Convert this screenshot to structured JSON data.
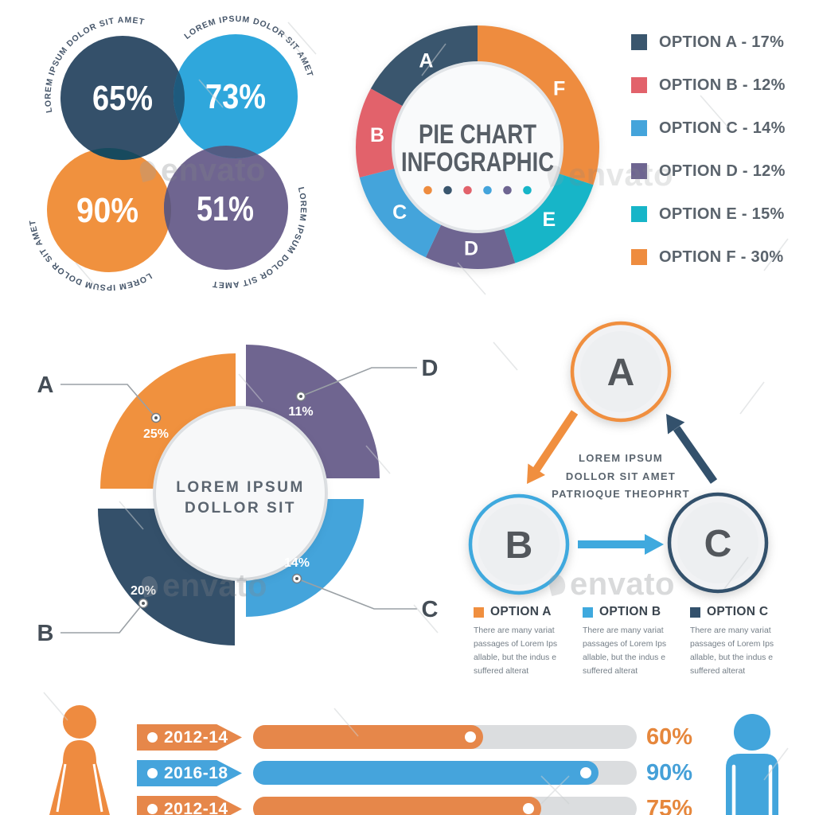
{
  "brand_watermark": "envato",
  "venn": {
    "items": [
      {
        "value": "65%",
        "curved_label": "LOREM IPSUM DOLOR SIT AMET",
        "color": "#34506A"
      },
      {
        "value": "73%",
        "curved_label": "LOREM IPSUM DOLOR SIT AMET",
        "color": "#2FA7DC"
      },
      {
        "value": "90%",
        "curved_label": "LOREM IPSUM DOLOR SIT AMET",
        "color": "#F0913E"
      },
      {
        "value": "51%",
        "curved_label": "LOREM IPSUM DOLOR SIT AMET",
        "color": "#6F6590"
      }
    ],
    "overlap_colors": {
      "navy_blue": "#1E5A7D",
      "navy_orange": "#174A5E",
      "blue_purple": "#525C83",
      "orange_purple": "#62597B"
    }
  },
  "pie": {
    "title_line1": "PIE CHART",
    "title_line2": "INFOGRAPHIC",
    "segments": [
      {
        "label": "A",
        "pct": 17,
        "color": "#3A566E"
      },
      {
        "label": "B",
        "pct": 12,
        "color": "#E2626B"
      },
      {
        "label": "C",
        "pct": 14,
        "color": "#44A4DB"
      },
      {
        "label": "D",
        "pct": 12,
        "color": "#6E6591"
      },
      {
        "label": "E",
        "pct": 15,
        "color": "#17B5C8"
      },
      {
        "label": "F",
        "pct": 30,
        "color": "#EE8C3F"
      }
    ],
    "legend": [
      {
        "label": "OPTION A - 17%",
        "color": "#3A566E"
      },
      {
        "label": "OPTION B - 12%",
        "color": "#E2626B"
      },
      {
        "label": "OPTION C - 14%",
        "color": "#44A4DB"
      },
      {
        "label": "OPTION D - 12%",
        "color": "#6E6591"
      },
      {
        "label": "OPTION E - 15%",
        "color": "#17B5C8"
      },
      {
        "label": "OPTION F - 30%",
        "color": "#EE8C3F"
      }
    ],
    "dots_colors": [
      "#EE8C3F",
      "#3A566E",
      "#E2626B",
      "#44A4DB",
      "#6E6591",
      "#17B5C8"
    ]
  },
  "radial": {
    "center_line1": "LOREM IPSUM",
    "center_line2": "DOLLOR SIT",
    "segments": [
      {
        "label": "A",
        "value": "25%",
        "color": "#F0913E"
      },
      {
        "label": "B",
        "value": "20%",
        "color": "#34506A"
      },
      {
        "label": "C",
        "value": "14%",
        "color": "#44A4DB"
      },
      {
        "label": "D",
        "value": "11%",
        "color": "#6F6590"
      }
    ]
  },
  "cycle": {
    "nodes": [
      {
        "label": "A",
        "color": "#F08F3F"
      },
      {
        "label": "B",
        "color": "#3FA9DE"
      },
      {
        "label": "C",
        "color": "#33516C"
      }
    ],
    "center_line1": "LOREM IPSUM",
    "center_line2": "DOLLOR SIT AMET",
    "center_line3": "PATRIOQUE THEOPHRT",
    "legend": [
      {
        "title": "OPTION A",
        "color": "#F08F3F",
        "description": "There are many variat passages of Lorem Ips allable, but the indus e suffered alterat"
      },
      {
        "title": "OPTION B",
        "color": "#3FA9DE",
        "description": "There are many variat passages of Lorem Ips allable, but the indus e suffered alterat"
      },
      {
        "title": "OPTION C",
        "color": "#33516C",
        "description": "There are many variat passages of Lorem Ips allable, but the indus e suffered alterat"
      }
    ]
  },
  "bars": {
    "rows": [
      {
        "year": "2012-14",
        "pct": 60,
        "pct_label": "60%",
        "color": "#E6874A",
        "pct_color": "#E6873C"
      },
      {
        "year": "2016-18",
        "pct": 90,
        "pct_label": "90%",
        "color": "#45A4DC",
        "pct_color": "#45A0D8"
      },
      {
        "year": "2012-14",
        "pct": 75,
        "pct_label": "75%",
        "color": "#E6874A",
        "pct_color": "#E6873C"
      }
    ],
    "female_icon_color": "#EE8B40",
    "male_icon_color": "#42A5DC"
  },
  "chart_data": [
    {
      "type": "pie",
      "subtype": "overlapping-percent-circles",
      "values": [
        65,
        73,
        90,
        51
      ],
      "labels": [
        "LOREM IPSUM DOLOR SIT AMET",
        "LOREM IPSUM DOLOR SIT AMET",
        "LOREM IPSUM DOLOR SIT AMET",
        "LOREM IPSUM DOLOR SIT AMET"
      ]
    },
    {
      "type": "pie",
      "subtype": "donut",
      "title": "PIE CHART INFOGRAPHIC",
      "categories": [
        "OPTION A",
        "OPTION B",
        "OPTION C",
        "OPTION D",
        "OPTION E",
        "OPTION F"
      ],
      "values": [
        17,
        12,
        14,
        12,
        15,
        30
      ],
      "legend_position": "right"
    },
    {
      "type": "pie",
      "subtype": "radial-quarter-fans",
      "title": "LOREM IPSUM DOLLOR SIT",
      "categories": [
        "A",
        "B",
        "C",
        "D"
      ],
      "values": [
        25,
        20,
        14,
        11
      ]
    },
    {
      "type": "bar",
      "orientation": "horizontal",
      "categories": [
        "2012-14",
        "2016-18",
        "2012-14"
      ],
      "values": [
        60,
        90,
        75
      ],
      "xlim": [
        0,
        100
      ]
    }
  ]
}
